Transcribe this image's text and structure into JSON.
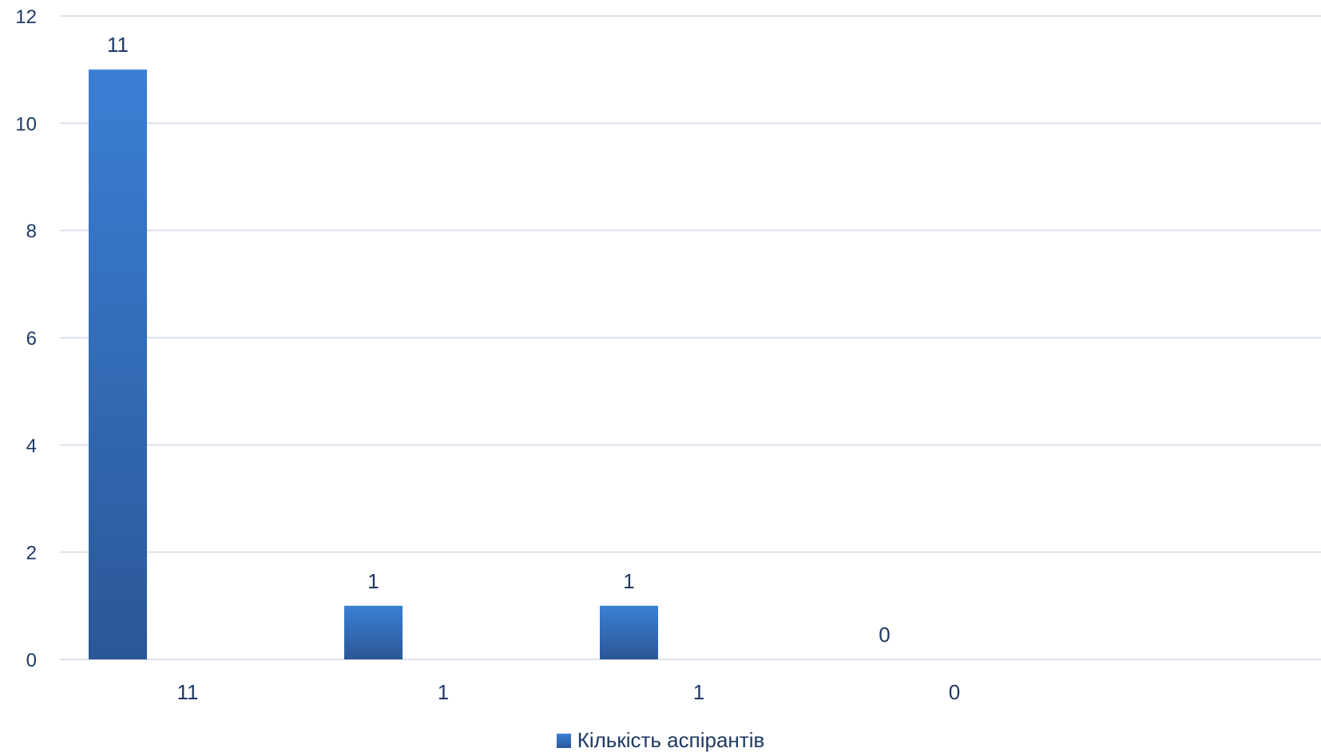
{
  "chart_data": {
    "type": "bar",
    "title": "",
    "xlabel": "",
    "ylabel": "",
    "categories": [
      "11",
      "1",
      "1",
      "0"
    ],
    "series": [
      {
        "name": "Кількість аспірантів",
        "values": [
          11,
          1,
          1,
          0
        ]
      }
    ],
    "ylim": [
      0,
      12
    ],
    "yticks": [
      0,
      2,
      4,
      6,
      8,
      10,
      12
    ],
    "grid": true,
    "legend": "bottom",
    "colors": {
      "bar_top": "#3a7fd5",
      "bar_bottom": "#2b5797",
      "grid": "#d9e2ee",
      "text": "#1f3864"
    }
  }
}
